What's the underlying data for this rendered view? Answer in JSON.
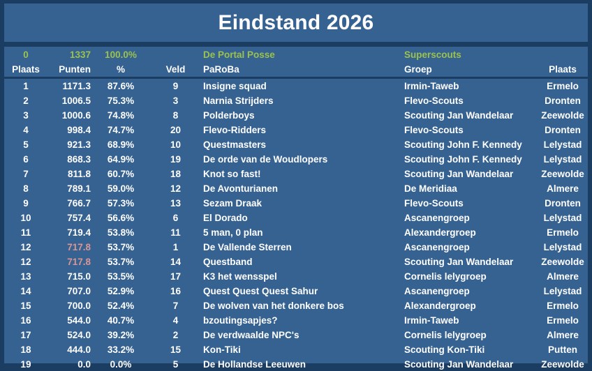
{
  "title": "Eindstand 2026",
  "colors": {
    "background_blue": "#366292",
    "border_navy": "#1c3d62",
    "accent_green": "#9cc14d",
    "tie_pink": "#d99694",
    "text_white": "#ffffff"
  },
  "summary": {
    "plaats": "0",
    "punten": "1337",
    "pct": "100.0%",
    "veld": "",
    "team": "De Portal Posse",
    "groep": "Superscouts",
    "stad": ""
  },
  "columns": {
    "plaats": "Plaats",
    "punten": "Punten",
    "pct": "%",
    "veld": "Veld",
    "team": "PaRoBa",
    "groep": "Groep",
    "stad": "Plaats"
  },
  "rows": [
    {
      "plaats": "1",
      "punten": "1171.3",
      "pct": "87.6%",
      "veld": "9",
      "team": "Insigne squad",
      "groep": "Irmin-Taweb",
      "stad": "Ermelo",
      "tie": false
    },
    {
      "plaats": "2",
      "punten": "1006.5",
      "pct": "75.3%",
      "veld": "3",
      "team": "Narnia Strijders",
      "groep": "Flevo-Scouts",
      "stad": "Dronten",
      "tie": false
    },
    {
      "plaats": "3",
      "punten": "1000.6",
      "pct": "74.8%",
      "veld": "8",
      "team": "Polderboys",
      "groep": "Scouting Jan Wandelaar",
      "stad": "Zeewolde",
      "tie": false
    },
    {
      "plaats": "4",
      "punten": "998.4",
      "pct": "74.7%",
      "veld": "20",
      "team": "Flevo-Ridders",
      "groep": "Flevo-Scouts",
      "stad": "Dronten",
      "tie": false
    },
    {
      "plaats": "5",
      "punten": "921.3",
      "pct": "68.9%",
      "veld": "10",
      "team": "Questmasters",
      "groep": "Scouting John F. Kennedy",
      "stad": "Lelystad",
      "tie": false
    },
    {
      "plaats": "6",
      "punten": "868.3",
      "pct": "64.9%",
      "veld": "19",
      "team": "De orde van de Woudlopers",
      "groep": "Scouting John F. Kennedy",
      "stad": "Lelystad",
      "tie": false
    },
    {
      "plaats": "7",
      "punten": "811.8",
      "pct": "60.7%",
      "veld": "18",
      "team": "Knot so fast!",
      "groep": "Scouting Jan Wandelaar",
      "stad": "Zeewolde",
      "tie": false
    },
    {
      "plaats": "8",
      "punten": "789.1",
      "pct": "59.0%",
      "veld": "12",
      "team": "De Avonturianen",
      "groep": "De Meridiaa",
      "stad": "Almere",
      "tie": false
    },
    {
      "plaats": "9",
      "punten": "766.7",
      "pct": "57.3%",
      "veld": "13",
      "team": "Sezam Draak",
      "groep": "Flevo-Scouts",
      "stad": "Dronten",
      "tie": false
    },
    {
      "plaats": "10",
      "punten": "757.4",
      "pct": "56.6%",
      "veld": "6",
      "team": "El Dorado",
      "groep": "Ascanengroep",
      "stad": "Lelystad",
      "tie": false
    },
    {
      "plaats": "11",
      "punten": "719.4",
      "pct": "53.8%",
      "veld": "11",
      "team": "5 man, 0 plan",
      "groep": "Alexandergroep",
      "stad": "Ermelo",
      "tie": false
    },
    {
      "plaats": "12",
      "punten": "717.8",
      "pct": "53.7%",
      "veld": "1",
      "team": "De Vallende Sterren",
      "groep": "Ascanengroep",
      "stad": "Lelystad",
      "tie": true
    },
    {
      "plaats": "12",
      "punten": "717.8",
      "pct": "53.7%",
      "veld": "14",
      "team": "Questband",
      "groep": "Scouting Jan Wandelaar",
      "stad": "Zeewolde",
      "tie": true
    },
    {
      "plaats": "13",
      "punten": "715.0",
      "pct": "53.5%",
      "veld": "17",
      "team": "K3 het wensspel",
      "groep": "Cornelis lelygroep",
      "stad": "Almere",
      "tie": false
    },
    {
      "plaats": "14",
      "punten": "707.0",
      "pct": "52.9%",
      "veld": "16",
      "team": "Quest Quest Quest Sahur",
      "groep": "Ascanengroep",
      "stad": "Lelystad",
      "tie": false
    },
    {
      "plaats": "15",
      "punten": "700.0",
      "pct": "52.4%",
      "veld": "7",
      "team": "De wolven van het donkere bos",
      "groep": "Alexandergroep",
      "stad": "Ermelo",
      "tie": false
    },
    {
      "plaats": "16",
      "punten": "544.0",
      "pct": "40.7%",
      "veld": "4",
      "team": "bzoutingsapjes?",
      "groep": "Irmin-Taweb",
      "stad": "Ermelo",
      "tie": false
    },
    {
      "plaats": "17",
      "punten": "524.0",
      "pct": "39.2%",
      "veld": "2",
      "team": "De verdwaalde NPC's",
      "groep": "Cornelis lelygroep",
      "stad": "Almere",
      "tie": false
    },
    {
      "plaats": "18",
      "punten": "444.0",
      "pct": "33.2%",
      "veld": "15",
      "team": "Kon-Tiki",
      "groep": "Scouting Kon-Tiki",
      "stad": "Putten",
      "tie": false
    },
    {
      "plaats": "19",
      "punten": "0.0",
      "pct": "0.0%",
      "veld": "5",
      "team": "De Hollandse Leeuwen",
      "groep": "Scouting Jan Wandelaar",
      "stad": "Zeewolde",
      "tie": false
    }
  ]
}
